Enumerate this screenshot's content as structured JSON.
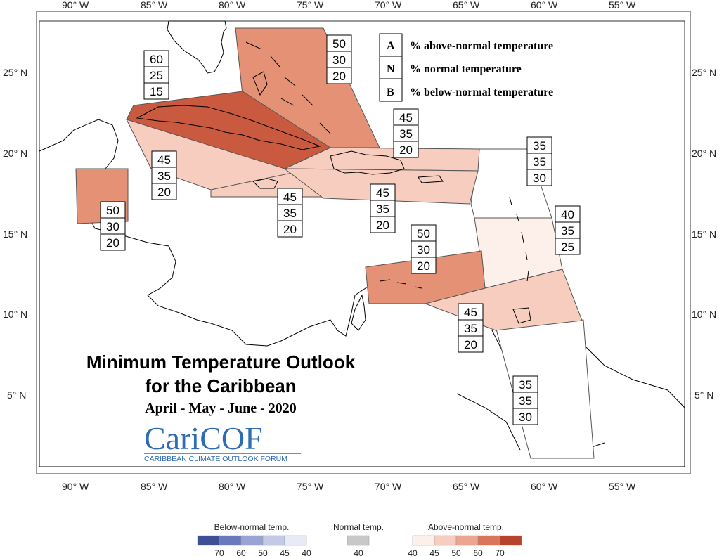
{
  "map": {
    "top_ticks": [
      "90° W",
      "85° W",
      "80° W",
      "75° W",
      "70° W",
      "65° W",
      "60° W",
      "55° W"
    ],
    "bottom_ticks": [
      "90° W",
      "85° W",
      "80° W",
      "75° W",
      "70° W",
      "65° W",
      "60° W",
      "55° W"
    ],
    "left_ticks": [
      "25° N",
      "20° N",
      "15° N",
      "10° N",
      "5° N"
    ],
    "right_ticks": [
      "25° N",
      "20° N",
      "15° N",
      "10° N",
      "5° N"
    ]
  },
  "key": {
    "rows": [
      {
        "letter": "A",
        "text": "% above-normal temperature"
      },
      {
        "letter": "N",
        "text": "% normal temperature"
      },
      {
        "letter": "B",
        "text": "% below-normal temperature"
      }
    ]
  },
  "regions": [
    {
      "name": "bahamas",
      "above": "50",
      "normal": "30",
      "below": "20",
      "fill": "#e49176"
    },
    {
      "name": "cuba-cayman",
      "above": "60",
      "normal": "25",
      "below": "15",
      "fill": "#c95a3f"
    },
    {
      "name": "yucatan-belize",
      "above": "50",
      "normal": "30",
      "below": "20",
      "fill": "#e49176"
    },
    {
      "name": "jamaica-west",
      "above": "45",
      "normal": "35",
      "below": "20",
      "fill": "#f6cdbe"
    },
    {
      "name": "jamaica",
      "above": "45",
      "normal": "35",
      "below": "20",
      "fill": "#f6cdbe"
    },
    {
      "name": "hispaniola-north",
      "above": "45",
      "normal": "35",
      "below": "20",
      "fill": "#f6cdbe"
    },
    {
      "name": "hispaniola-pr",
      "above": "45",
      "normal": "35",
      "below": "20",
      "fill": "#f6cdbe"
    },
    {
      "name": "northern-leewards",
      "above": "35",
      "normal": "35",
      "below": "30",
      "fill": "#ffffff"
    },
    {
      "name": "windwards",
      "above": "40",
      "normal": "35",
      "below": "25",
      "fill": "#fdf0ea"
    },
    {
      "name": "abc-islands",
      "above": "50",
      "normal": "30",
      "below": "20",
      "fill": "#e49176"
    },
    {
      "name": "trinidad-tobago",
      "above": "45",
      "normal": "35",
      "below": "20",
      "fill": "#f6cdbe"
    },
    {
      "name": "guianas",
      "above": "35",
      "normal": "35",
      "below": "30",
      "fill": "#ffffff"
    }
  ],
  "title": {
    "line1": "Minimum Temperature Outlook",
    "line2": "for the Caribbean",
    "period": "April - May - June - 2020"
  },
  "logo": {
    "text": "CariCOF",
    "subtitle": "CARIBBEAN CLIMATE OUTLOOK FORUM"
  },
  "colorbar": {
    "below_label": "Below-normal temp.",
    "normal_label": "Normal temp.",
    "above_label": "Above-normal temp.",
    "below_colors": [
      "#3f4f96",
      "#6a78bd",
      "#9aa3d3",
      "#c4c9e6",
      "#e8ebf7"
    ],
    "below_ticks": [
      "70",
      "60",
      "50",
      "45",
      "40"
    ],
    "normal_color": "#c8c8c8",
    "normal_tick": "40",
    "above_colors": [
      "#fdf0ea",
      "#f6cdbe",
      "#eca58f",
      "#d8755c",
      "#b8432c"
    ],
    "above_ticks": [
      "40",
      "45",
      "50",
      "60",
      "70"
    ]
  }
}
